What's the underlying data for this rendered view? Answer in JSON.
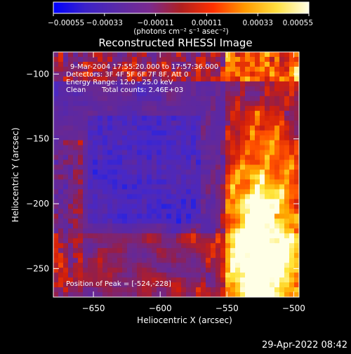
{
  "chart_data": {
    "type": "heatmap",
    "title": "Reconstructed RHESSI Image",
    "xlabel": "Heliocentric X (arcsec)",
    "ylabel": "Heliocentric Y (arcsec)",
    "xlim": [
      -680,
      -496
    ],
    "ylim": [
      -272,
      -83
    ],
    "x_ticks": [
      -650,
      -600,
      -550,
      -500
    ],
    "x_tick_labels": [
      "−650",
      "−600",
      "−550",
      "−500"
    ],
    "y_ticks": [
      -100,
      -150,
      -200,
      -250
    ],
    "y_tick_labels": [
      "−100",
      "−150",
      "−200",
      "−250"
    ],
    "colorbar": {
      "min": -0.00055,
      "max": 0.00055,
      "ticks": [
        -0.00055,
        -0.00033,
        -0.00011,
        0.00011,
        0.00033,
        0.00055
      ],
      "tick_labels": [
        "−0.00055",
        "−0.00033",
        "−0.00011",
        "0.00011",
        "0.00033",
        "0.00055"
      ],
      "label": "(photons cm⁻² s⁻¹ asec⁻²)",
      "colors": [
        "#0000ff",
        "#3b22c8",
        "#5a2aa8",
        "#7a2a90",
        "#b02020",
        "#ff3000",
        "#ff9a00",
        "#ffe040",
        "#ffffe8"
      ]
    },
    "annotations": {
      "time_range": "9-Mar-2004 17:55:20.000 to 17:57:36.000",
      "detectors": "Detectors: 3F 4F 5F 6F 7F 8F, Att 0",
      "energy_range": "Energy Range: 12.0 - 25.0 keV",
      "method": "Clean",
      "total_counts": "Total counts: 2.46E+03",
      "peak_position": "Position of Peak = [-524,-228]"
    },
    "peak": [
      -524,
      -228
    ],
    "grid": false
  },
  "footer": {
    "timestamp": "29-Apr-2022 08:42"
  }
}
